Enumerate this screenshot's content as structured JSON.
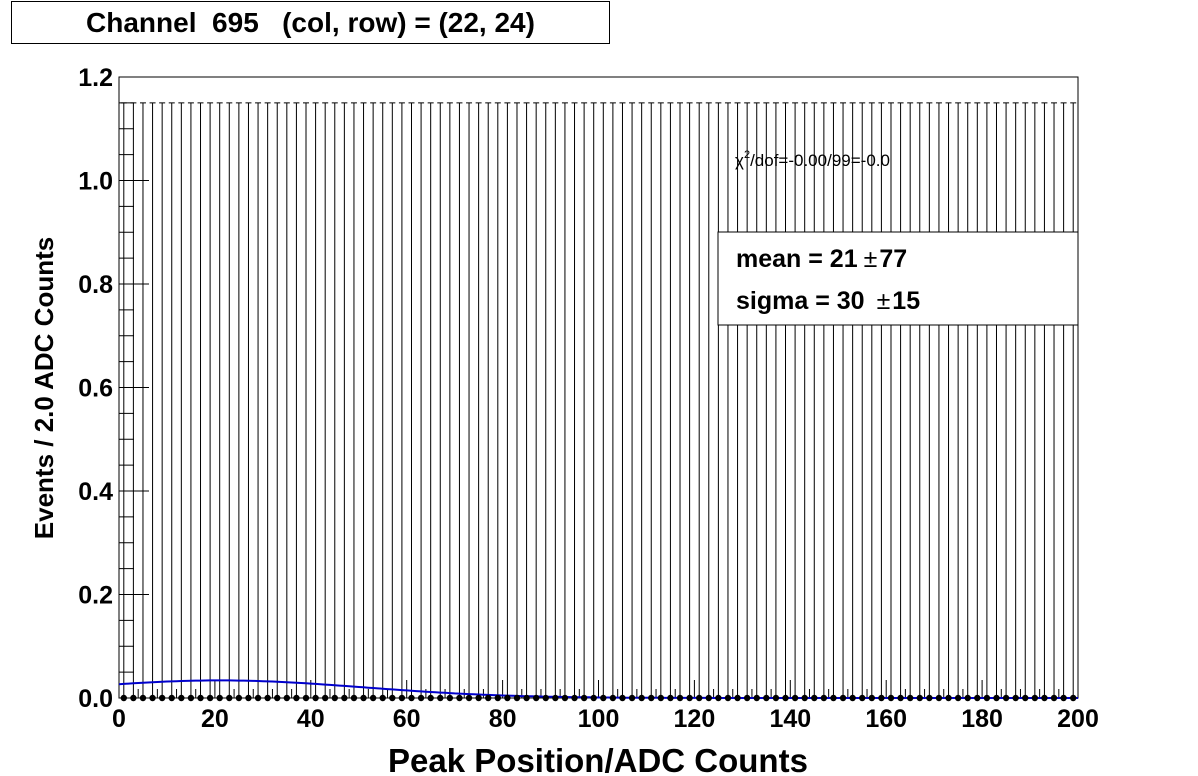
{
  "title": "Channel  695   (col, row) = (22, 24)",
  "chart_data": {
    "type": "scatter",
    "xlabel": "Peak Position/ADC Counts",
    "ylabel": "Events / 2.0 ADC Counts",
    "xlim": [
      0,
      200
    ],
    "ylim": [
      0,
      1.2
    ],
    "x_ticks": [
      "0",
      "20",
      "40",
      "60",
      "80",
      "100",
      "120",
      "140",
      "160",
      "180",
      "200"
    ],
    "y_ticks": [
      "0.0",
      "0.2",
      "0.4",
      "0.6",
      "0.8",
      "1.0",
      "1.2"
    ],
    "bin_width": 2.0,
    "bin_count": 100,
    "bin_values": "all 0",
    "error_bar_upper": 1.15,
    "fit": {
      "name": "gaussian",
      "mean": 21,
      "sigma": 30,
      "amplitude": 0.034,
      "color": "#0000cc"
    },
    "stats": {
      "chi2": "χ",
      "chi2_sup": "2",
      "chi2_rest": "/dof=-0.00/99=-0.0",
      "mean_label": "mean =  21",
      "mean_pm": "±",
      "mean_err": "77",
      "sigma_label": "sigma =  30",
      "sigma_pm": "±",
      "sigma_err": "15"
    }
  }
}
